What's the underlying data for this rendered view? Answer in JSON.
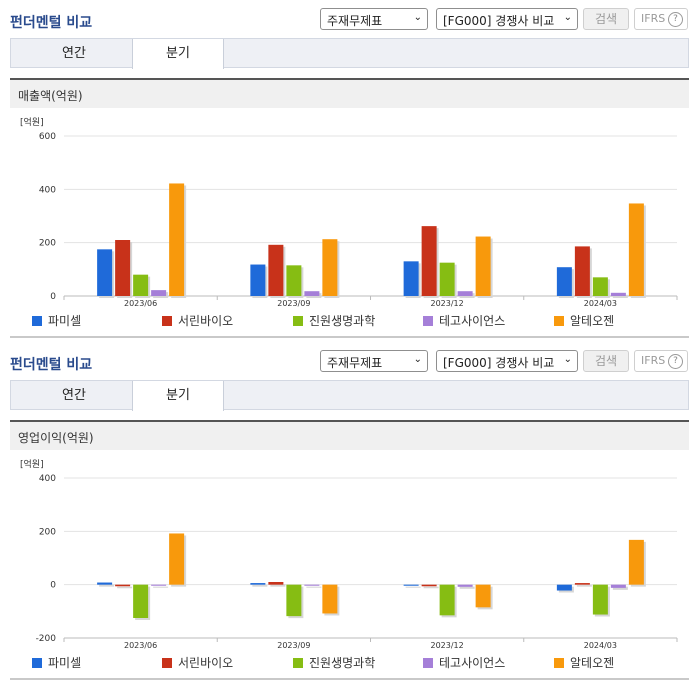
{
  "colors": {
    "series": [
      "#1f6ad9",
      "#c8321a",
      "#86bd13",
      "#a57fd8",
      "#f8990c"
    ]
  },
  "sections": [
    {
      "title": "펀더멘털 비교",
      "select_statement": "주재무제표",
      "select_compare": "[FG000] 경쟁사 비교",
      "search_label": "검색",
      "ifrs_label": "IFRS",
      "ifrs_help": "?",
      "tabs": [
        {
          "label": "연간",
          "active": false
        },
        {
          "label": "분기",
          "active": true
        }
      ],
      "metric_label": "매출액(억원)",
      "legend": [
        "파미셀",
        "서린바이오",
        "진원생명과학",
        "테고사이언스",
        "알테오젠"
      ]
    },
    {
      "title": "펀더멘털 비교",
      "select_statement": "주재무제표",
      "select_compare": "[FG000] 경쟁사 비교",
      "search_label": "검색",
      "ifrs_label": "IFRS",
      "ifrs_help": "?",
      "tabs": [
        {
          "label": "연간",
          "active": false
        },
        {
          "label": "분기",
          "active": true
        }
      ],
      "metric_label": "영업이익(억원)",
      "legend": [
        "파미셀",
        "서린바이오",
        "진원생명과학",
        "테고사이언스",
        "알테오젠"
      ]
    }
  ],
  "chart_data": [
    {
      "type": "bar",
      "unit_label": "[억원]",
      "categories": [
        "2023/06",
        "2023/09",
        "2023/12",
        "2024/03"
      ],
      "ylim": [
        0,
        600
      ],
      "yticks": [
        0,
        200,
        400,
        600
      ],
      "grid": true,
      "legend_position": "bottom",
      "series": [
        {
          "name": "파미셀",
          "values": [
            175,
            118,
            130,
            108
          ]
        },
        {
          "name": "서린바이오",
          "values": [
            210,
            192,
            262,
            186
          ]
        },
        {
          "name": "진원생명과학",
          "values": [
            80,
            115,
            125,
            70
          ]
        },
        {
          "name": "테고사이언스",
          "values": [
            22,
            18,
            18,
            12
          ]
        },
        {
          "name": "알테오젠",
          "values": [
            422,
            213,
            223,
            347
          ]
        }
      ]
    },
    {
      "type": "bar",
      "unit_label": "[억원]",
      "categories": [
        "2023/06",
        "2023/09",
        "2023/12",
        "2024/03"
      ],
      "ylim": [
        -200,
        400
      ],
      "yticks": [
        -200,
        0,
        200,
        400
      ],
      "grid": true,
      "legend_position": "bottom",
      "series": [
        {
          "name": "파미셀",
          "values": [
            8,
            6,
            -4,
            -22
          ]
        },
        {
          "name": "서린바이오",
          "values": [
            -6,
            10,
            -6,
            6
          ]
        },
        {
          "name": "진원생명과학",
          "values": [
            -125,
            -118,
            -115,
            -112
          ]
        },
        {
          "name": "테고사이언스",
          "values": [
            -4,
            -4,
            -8,
            -12
          ]
        },
        {
          "name": "알테오젠",
          "values": [
            192,
            -108,
            -85,
            168
          ]
        }
      ]
    }
  ]
}
